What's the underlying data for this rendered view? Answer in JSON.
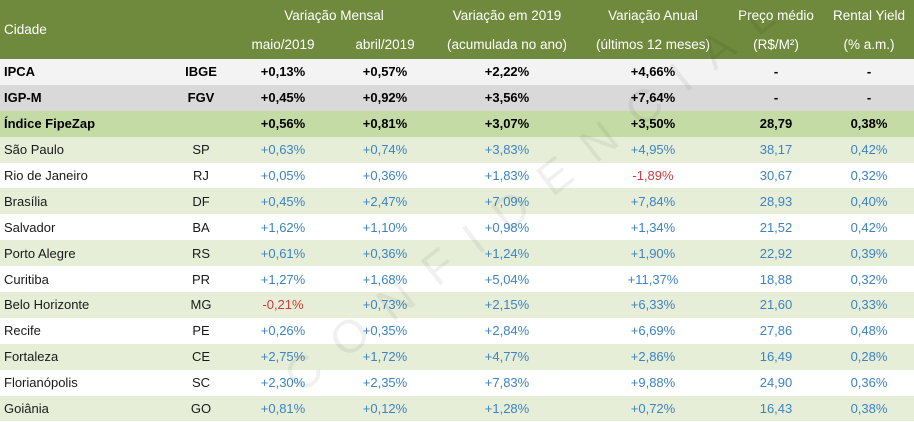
{
  "header": {
    "city": "Cidade",
    "monthly": "Variação Mensal",
    "may": "maio/2019",
    "april": "abril/2019",
    "ytd": "Variação em 2019",
    "ytd_sub": "(acumulada no ano)",
    "annual": "Variação Anual",
    "annual_sub": "(últimos 12 meses)",
    "price": "Preço médio",
    "price_sub": "(R$/M²)",
    "yield": "Rental Yield",
    "yield_sub": "(% a.m.)"
  },
  "indices": [
    {
      "name": "IPCA",
      "source": "IBGE",
      "may": "+0,13%",
      "apr": "+0,57%",
      "ytd": "+2,22%",
      "annual": "+4,66%",
      "price": "-",
      "yield": "-"
    },
    {
      "name": "IGP-M",
      "source": "FGV",
      "may": "+0,45%",
      "apr": "+0,92%",
      "ytd": "+3,56%",
      "annual": "+7,64%",
      "price": "-",
      "yield": "-"
    },
    {
      "name": "Índice FipeZap",
      "source": "",
      "may": "+0,56%",
      "apr": "+0,81%",
      "ytd": "+3,07%",
      "annual": "+3,50%",
      "price": "28,79",
      "yield": "0,38%"
    }
  ],
  "cities": [
    {
      "name": "São Paulo",
      "uf": "SP",
      "may": "+0,63%",
      "apr": "+0,74%",
      "ytd": "+3,83%",
      "annual": "+4,95%",
      "price": "38,17",
      "yield": "0,42%"
    },
    {
      "name": "Rio de Janeiro",
      "uf": "RJ",
      "may": "+0,05%",
      "apr": "+0,36%",
      "ytd": "+1,83%",
      "annual": "-1,89%",
      "price": "30,67",
      "yield": "0,32%"
    },
    {
      "name": "Brasília",
      "uf": "DF",
      "may": "+0,45%",
      "apr": "+2,47%",
      "ytd": "+7,09%",
      "annual": "+7,84%",
      "price": "28,93",
      "yield": "0,40%"
    },
    {
      "name": "Salvador",
      "uf": "BA",
      "may": "+1,62%",
      "apr": "+1,10%",
      "ytd": "+0,98%",
      "annual": "+1,34%",
      "price": "21,52",
      "yield": "0,42%"
    },
    {
      "name": "Porto Alegre",
      "uf": "RS",
      "may": "+0,61%",
      "apr": "+0,36%",
      "ytd": "+1,24%",
      "annual": "+1,90%",
      "price": "22,92",
      "yield": "0,39%"
    },
    {
      "name": "Curitiba",
      "uf": "PR",
      "may": "+1,27%",
      "apr": "+1,68%",
      "ytd": "+5,04%",
      "annual": "+11,37%",
      "price": "18,88",
      "yield": "0,32%"
    },
    {
      "name": "Belo Horizonte",
      "uf": "MG",
      "may": "-0,21%",
      "apr": "+0,73%",
      "ytd": "+2,15%",
      "annual": "+6,33%",
      "price": "21,60",
      "yield": "0,33%"
    },
    {
      "name": "Recife",
      "uf": "PE",
      "may": "+0,26%",
      "apr": "+0,35%",
      "ytd": "+2,84%",
      "annual": "+6,69%",
      "price": "27,86",
      "yield": "0,48%"
    },
    {
      "name": "Fortaleza",
      "uf": "CE",
      "may": "+2,75%",
      "apr": "+1,72%",
      "ytd": "+4,77%",
      "annual": "+2,86%",
      "price": "16,49",
      "yield": "0,28%"
    },
    {
      "name": "Florianópolis",
      "uf": "SC",
      "may": "+2,30%",
      "apr": "+2,35%",
      "ytd": "+7,83%",
      "annual": "+9,88%",
      "price": "24,90",
      "yield": "0,36%"
    },
    {
      "name": "Goiânia",
      "uf": "GO",
      "may": "+0,81%",
      "apr": "+0,12%",
      "ytd": "+1,28%",
      "annual": "+0,72%",
      "price": "16,43",
      "yield": "0,38%"
    }
  ],
  "watermark": "CONFIDENCIAL",
  "colors": {
    "header_bg": "#6f8a3c",
    "fipezap_bg": "#c5dba6",
    "positive_text": "#3d83c4",
    "negative_text": "#d23a3a",
    "stripe_bg": "#e6eed8"
  }
}
